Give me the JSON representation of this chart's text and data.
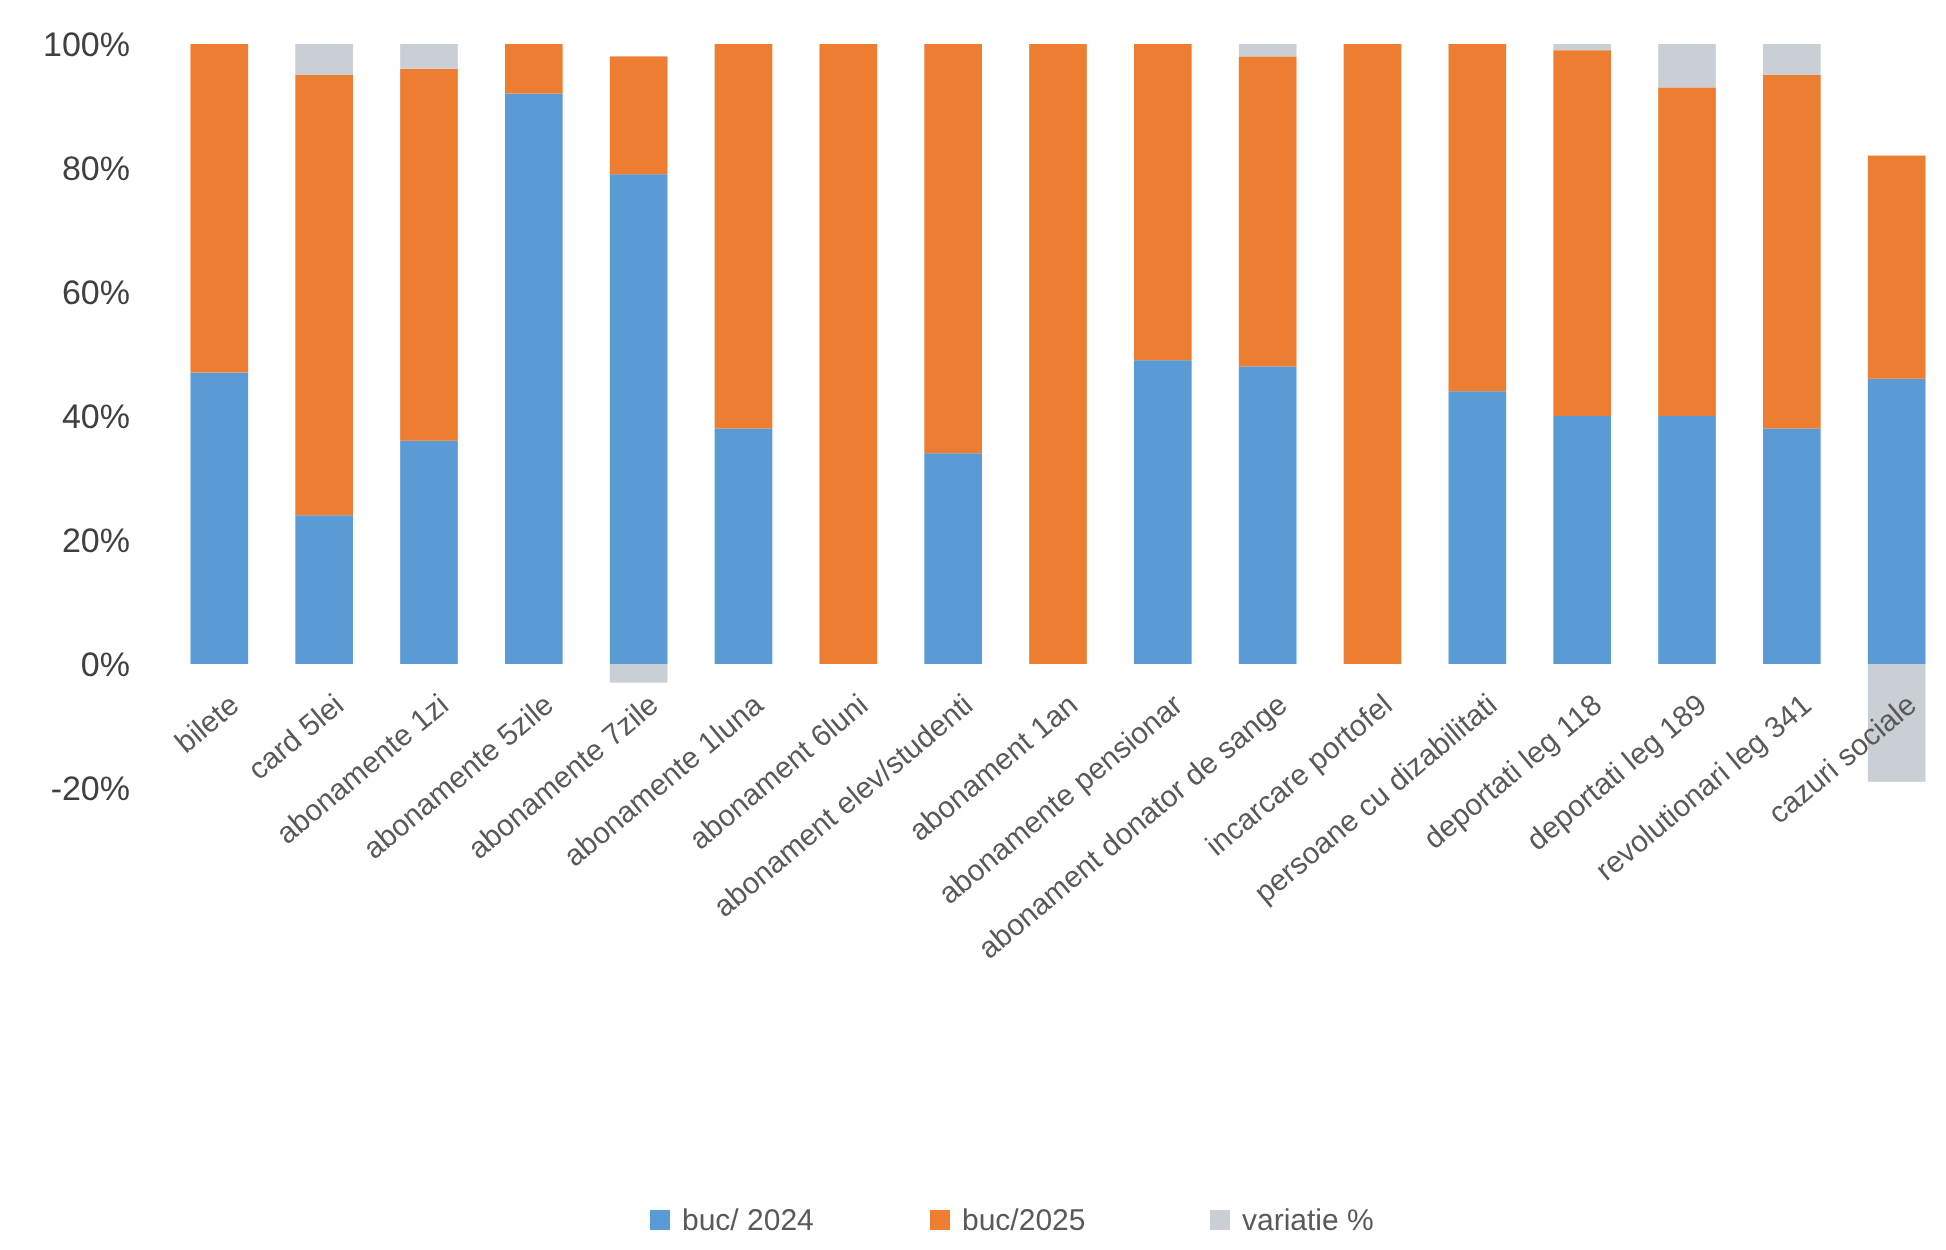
{
  "chart_data": {
    "type": "bar",
    "stacked": true,
    "legend": "bottom",
    "grid": false,
    "categories": [
      "bilete",
      "card 5lei",
      "abonamente  1zi",
      "abonamente 5zile",
      "abonamente 7zile",
      "abonamente 1luna",
      "abonament 6luni",
      "abonament elev/studenti",
      "abonament 1an",
      "abonamente pensionar",
      "abonament donator de sange",
      "incarcare portofel",
      "persoane cu dizabilitati",
      "deportati leg 118",
      "deportati leg 189",
      "revolutionari leg 341",
      "cazuri sociale"
    ],
    "ylim": [
      -20,
      100
    ],
    "yticks": [
      {
        "value": -20,
        "label": "-20%"
      },
      {
        "value": 0,
        "label": "0%"
      },
      {
        "value": 20,
        "label": "20%"
      },
      {
        "value": 40,
        "label": "40%"
      },
      {
        "value": 60,
        "label": "60%"
      },
      {
        "value": 80,
        "label": "80%"
      },
      {
        "value": 100,
        "label": "100%"
      }
    ],
    "series": [
      {
        "name": "buc/ 2024",
        "color": "#5b9bd5",
        "values": [
          47,
          24,
          36,
          92,
          79,
          38,
          0,
          34,
          0,
          49,
          48,
          0,
          44,
          40,
          40,
          38,
          46
        ]
      },
      {
        "name": "buc/2025",
        "color": "#ed7d31",
        "values": [
          53,
          71,
          60,
          8,
          19,
          62,
          100,
          66,
          100,
          51,
          50,
          100,
          56,
          59,
          53,
          57,
          36
        ]
      },
      {
        "name": "variatie %",
        "color": "#c9cfd4",
        "values": [
          0,
          5,
          4,
          0,
          -3,
          0,
          0,
          0,
          0,
          0,
          2,
          0,
          0,
          1,
          7,
          5,
          -19
        ]
      }
    ]
  }
}
